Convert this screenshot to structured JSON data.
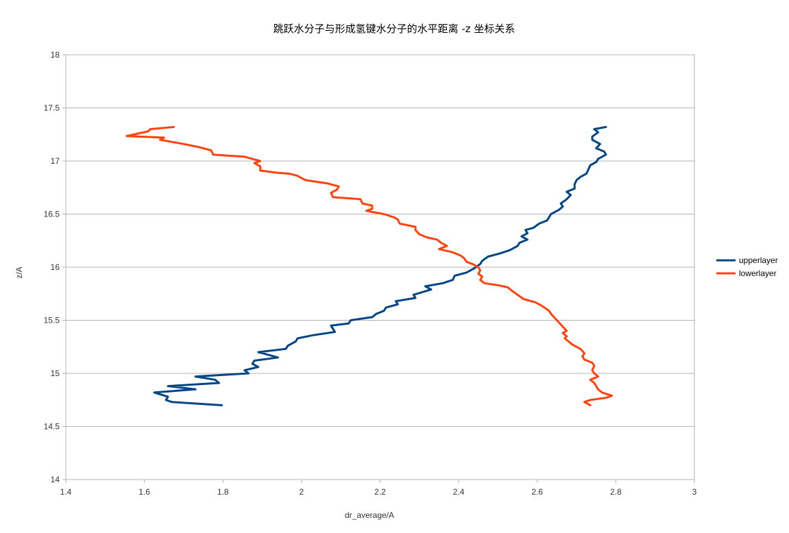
{
  "chart_data": {
    "type": "line",
    "title": "跳跃水分子与形成氢键水分子的水平距离 -z 坐标关系",
    "xlabel": "dr_average/A",
    "ylabel": "z/A",
    "xlim": [
      1.4,
      3.0
    ],
    "ylim": [
      14,
      18
    ],
    "xticks": [
      "1.4",
      "1.6",
      "1.8",
      "2",
      "2.2",
      "2.4",
      "2.6",
      "2.8",
      "3"
    ],
    "yticks": [
      "14",
      "14.5",
      "15",
      "15.5",
      "16",
      "16.5",
      "17",
      "17.5",
      "18"
    ],
    "grid": "horizontal",
    "legend": "right",
    "series": [
      {
        "name": "upperlayer",
        "color": "#004586",
        "points": [
          [
            1.797,
            14.7
          ],
          [
            1.67,
            14.73
          ],
          [
            1.655,
            14.75
          ],
          [
            1.66,
            14.78
          ],
          [
            1.625,
            14.82
          ],
          [
            1.73,
            14.85
          ],
          [
            1.66,
            14.88
          ],
          [
            1.79,
            14.91
          ],
          [
            1.78,
            14.94
          ],
          [
            1.73,
            14.97
          ],
          [
            1.865,
            15.0
          ],
          [
            1.855,
            15.03
          ],
          [
            1.89,
            15.06
          ],
          [
            1.875,
            15.09
          ],
          [
            1.88,
            15.12
          ],
          [
            1.94,
            15.15
          ],
          [
            1.91,
            15.18
          ],
          [
            1.89,
            15.2
          ],
          [
            1.96,
            15.23
          ],
          [
            1.965,
            15.26
          ],
          [
            1.985,
            15.3
          ],
          [
            1.99,
            15.33
          ],
          [
            2.03,
            15.36
          ],
          [
            2.085,
            15.39
          ],
          [
            2.08,
            15.42
          ],
          [
            2.075,
            15.45
          ],
          [
            2.12,
            15.47
          ],
          [
            2.125,
            15.5
          ],
          [
            2.18,
            15.53
          ],
          [
            2.19,
            15.56
          ],
          [
            2.21,
            15.59
          ],
          [
            2.215,
            15.62
          ],
          [
            2.245,
            15.65
          ],
          [
            2.24,
            15.68
          ],
          [
            2.29,
            15.71
          ],
          [
            2.285,
            15.74
          ],
          [
            2.33,
            15.79
          ],
          [
            2.315,
            15.82
          ],
          [
            2.36,
            15.85
          ],
          [
            2.385,
            15.88
          ],
          [
            2.39,
            15.92
          ],
          [
            2.42,
            15.95
          ],
          [
            2.44,
            15.99
          ],
          [
            2.455,
            16.03
          ],
          [
            2.46,
            16.06
          ],
          [
            2.475,
            16.1
          ],
          [
            2.505,
            16.13
          ],
          [
            2.53,
            16.16
          ],
          [
            2.55,
            16.2
          ],
          [
            2.555,
            16.23
          ],
          [
            2.575,
            16.26
          ],
          [
            2.56,
            16.29
          ],
          [
            2.575,
            16.32
          ],
          [
            2.57,
            16.35
          ],
          [
            2.59,
            16.37
          ],
          [
            2.605,
            16.41
          ],
          [
            2.625,
            16.44
          ],
          [
            2.63,
            16.47
          ],
          [
            2.635,
            16.5
          ],
          [
            2.655,
            16.54
          ],
          [
            2.665,
            16.57
          ],
          [
            2.66,
            16.6
          ],
          [
            2.675,
            16.64
          ],
          [
            2.685,
            16.68
          ],
          [
            2.675,
            16.71
          ],
          [
            2.695,
            16.74
          ],
          [
            2.695,
            16.78
          ],
          [
            2.7,
            16.82
          ],
          [
            2.71,
            16.85
          ],
          [
            2.725,
            16.88
          ],
          [
            2.73,
            16.92
          ],
          [
            2.735,
            16.96
          ],
          [
            2.75,
            16.99
          ],
          [
            2.755,
            17.02
          ],
          [
            2.775,
            17.06
          ],
          [
            2.77,
            17.09
          ],
          [
            2.75,
            17.12
          ],
          [
            2.76,
            17.16
          ],
          [
            2.74,
            17.2
          ],
          [
            2.74,
            17.23
          ],
          [
            2.755,
            17.27
          ],
          [
            2.745,
            17.3
          ],
          [
            2.775,
            17.32
          ]
        ]
      },
      {
        "name": "lowerlayer",
        "color": "#ff420e",
        "points": [
          [
            1.675,
            17.32
          ],
          [
            1.615,
            17.3
          ],
          [
            1.61,
            17.28
          ],
          [
            1.555,
            17.235
          ],
          [
            1.65,
            17.22
          ],
          [
            1.64,
            17.2
          ],
          [
            1.7,
            17.16
          ],
          [
            1.74,
            17.13
          ],
          [
            1.77,
            17.1
          ],
          [
            1.775,
            17.06
          ],
          [
            1.855,
            17.04
          ],
          [
            1.875,
            17.02
          ],
          [
            1.895,
            17.0
          ],
          [
            1.88,
            16.98
          ],
          [
            1.895,
            16.95
          ],
          [
            1.895,
            16.91
          ],
          [
            1.935,
            16.89
          ],
          [
            1.97,
            16.88
          ],
          [
            1.99,
            16.86
          ],
          [
            2.01,
            16.82
          ],
          [
            2.065,
            16.79
          ],
          [
            2.095,
            16.76
          ],
          [
            2.09,
            16.73
          ],
          [
            2.075,
            16.7
          ],
          [
            2.08,
            16.66
          ],
          [
            2.15,
            16.64
          ],
          [
            2.155,
            16.6
          ],
          [
            2.18,
            16.58
          ],
          [
            2.18,
            16.55
          ],
          [
            2.165,
            16.53
          ],
          [
            2.21,
            16.5
          ],
          [
            2.235,
            16.47
          ],
          [
            2.245,
            16.45
          ],
          [
            2.25,
            16.41
          ],
          [
            2.29,
            16.38
          ],
          [
            2.29,
            16.35
          ],
          [
            2.3,
            16.31
          ],
          [
            2.32,
            16.28
          ],
          [
            2.345,
            16.26
          ],
          [
            2.355,
            16.23
          ],
          [
            2.37,
            16.2
          ],
          [
            2.35,
            16.17
          ],
          [
            2.385,
            16.14
          ],
          [
            2.405,
            16.11
          ],
          [
            2.415,
            16.08
          ],
          [
            2.42,
            16.05
          ],
          [
            2.435,
            16.03
          ],
          [
            2.45,
            16.0
          ],
          [
            2.455,
            15.97
          ],
          [
            2.45,
            15.94
          ],
          [
            2.46,
            15.91
          ],
          [
            2.455,
            15.88
          ],
          [
            2.465,
            15.85
          ],
          [
            2.5,
            15.83
          ],
          [
            2.525,
            15.81
          ],
          [
            2.535,
            15.78
          ],
          [
            2.55,
            15.74
          ],
          [
            2.565,
            15.7
          ],
          [
            2.595,
            15.67
          ],
          [
            2.61,
            15.64
          ],
          [
            2.63,
            15.59
          ],
          [
            2.635,
            15.56
          ],
          [
            2.645,
            15.52
          ],
          [
            2.655,
            15.48
          ],
          [
            2.665,
            15.44
          ],
          [
            2.675,
            15.4
          ],
          [
            2.665,
            15.38
          ],
          [
            2.675,
            15.35
          ],
          [
            2.67,
            15.33
          ],
          [
            2.68,
            15.3
          ],
          [
            2.69,
            15.27
          ],
          [
            2.71,
            15.23
          ],
          [
            2.72,
            15.19
          ],
          [
            2.715,
            15.16
          ],
          [
            2.72,
            15.13
          ],
          [
            2.74,
            15.1
          ],
          [
            2.745,
            15.07
          ],
          [
            2.74,
            15.03
          ],
          [
            2.745,
            15.0
          ],
          [
            2.755,
            14.97
          ],
          [
            2.735,
            14.94
          ],
          [
            2.745,
            14.91
          ],
          [
            2.75,
            14.88
          ],
          [
            2.755,
            14.85
          ],
          [
            2.765,
            14.82
          ],
          [
            2.79,
            14.79
          ],
          [
            2.775,
            14.77
          ],
          [
            2.735,
            14.75
          ],
          [
            2.72,
            14.73
          ],
          [
            2.735,
            14.7
          ]
        ]
      }
    ]
  }
}
